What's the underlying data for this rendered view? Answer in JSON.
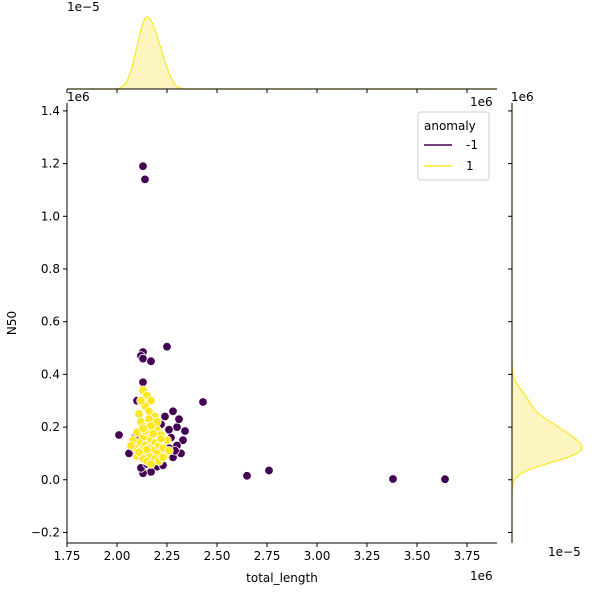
{
  "chart_data": {
    "type": "scatter",
    "title": "",
    "xlabel": "total_length",
    "ylabel": "N50",
    "x_offset_label": "1e6",
    "y_offset_label": "1e6",
    "xlim": [
      1.75,
      3.9
    ],
    "ylim": [
      -0.24,
      1.43
    ],
    "xticks": [
      1.75,
      2.0,
      2.25,
      2.5,
      2.75,
      3.0,
      3.25,
      3.5,
      3.75
    ],
    "xtick_labels": [
      "1.75",
      "2.00",
      "2.25",
      "2.50",
      "2.75",
      "3.00",
      "3.25",
      "3.50",
      "3.75"
    ],
    "yticks": [
      -0.2,
      0.0,
      0.2,
      0.4,
      0.6,
      0.8,
      1.0,
      1.2,
      1.4
    ],
    "ytick_labels": [
      "−0.2",
      "0.0",
      "0.2",
      "0.4",
      "0.6",
      "0.8",
      "1.0",
      "1.2",
      "1.4"
    ],
    "legend": {
      "title": "anomaly",
      "placement": "top-right",
      "entries": [
        {
          "label": "-1",
          "color": "#440154"
        },
        {
          "label": "1",
          "color": "#fde725"
        }
      ]
    },
    "colors": {
      "anomaly_-1": "#440154",
      "anomaly_1": "#fde725",
      "kde_fill": "#fdf5c0"
    },
    "series": [
      {
        "name": "-1",
        "color": "#440154",
        "points": [
          [
            2.13,
            1.19
          ],
          [
            2.14,
            1.14
          ],
          [
            2.25,
            0.505
          ],
          [
            2.13,
            0.485
          ],
          [
            2.12,
            0.47
          ],
          [
            2.13,
            0.46
          ],
          [
            2.17,
            0.45
          ],
          [
            2.13,
            0.37
          ],
          [
            2.43,
            0.295
          ],
          [
            2.01,
            0.17
          ],
          [
            2.65,
            0.015
          ],
          [
            2.76,
            0.035
          ],
          [
            3.38,
            0.003
          ],
          [
            3.64,
            0.002
          ],
          [
            2.1,
            0.3
          ],
          [
            2.28,
            0.26
          ],
          [
            2.3,
            0.2
          ],
          [
            2.33,
            0.15
          ],
          [
            2.34,
            0.185
          ],
          [
            2.32,
            0.1
          ],
          [
            2.28,
            0.085
          ],
          [
            2.26,
            0.12
          ],
          [
            2.24,
            0.24
          ],
          [
            2.22,
            0.07
          ],
          [
            2.2,
            0.05
          ],
          [
            2.17,
            0.03
          ],
          [
            2.13,
            0.025
          ],
          [
            2.12,
            0.045
          ],
          [
            2.08,
            0.12
          ],
          [
            2.06,
            0.1
          ],
          [
            2.3,
            0.13
          ],
          [
            2.27,
            0.16
          ],
          [
            2.31,
            0.23
          ],
          [
            2.26,
            0.19
          ],
          [
            2.29,
            0.11
          ],
          [
            2.23,
            0.055
          ],
          [
            2.18,
            0.09
          ],
          [
            2.15,
            0.06
          ],
          [
            2.09,
            0.16
          ],
          [
            2.22,
            0.21
          ]
        ]
      },
      {
        "name": "1",
        "color": "#fde725",
        "points": [
          [
            2.13,
            0.34
          ],
          [
            2.15,
            0.32
          ],
          [
            2.17,
            0.3
          ],
          [
            2.14,
            0.28
          ],
          [
            2.11,
            0.25
          ],
          [
            2.16,
            0.26
          ],
          [
            2.19,
            0.24
          ],
          [
            2.12,
            0.22
          ],
          [
            2.14,
            0.2
          ],
          [
            2.18,
            0.21
          ],
          [
            2.2,
            0.19
          ],
          [
            2.1,
            0.18
          ],
          [
            2.15,
            0.17
          ],
          [
            2.22,
            0.17
          ],
          [
            2.13,
            0.16
          ],
          [
            2.17,
            0.15
          ],
          [
            2.19,
            0.14
          ],
          [
            2.11,
            0.14
          ],
          [
            2.14,
            0.13
          ],
          [
            2.21,
            0.13
          ],
          [
            2.09,
            0.12
          ],
          [
            2.16,
            0.12
          ],
          [
            2.23,
            0.12
          ],
          [
            2.12,
            0.11
          ],
          [
            2.18,
            0.11
          ],
          [
            2.14,
            0.1
          ],
          [
            2.2,
            0.1
          ],
          [
            2.1,
            0.09
          ],
          [
            2.16,
            0.09
          ],
          [
            2.24,
            0.09
          ],
          [
            2.13,
            0.08
          ],
          [
            2.19,
            0.08
          ],
          [
            2.15,
            0.07
          ],
          [
            2.21,
            0.07
          ],
          [
            2.17,
            0.06
          ],
          [
            2.08,
            0.15
          ],
          [
            2.07,
            0.13
          ],
          [
            2.25,
            0.15
          ],
          [
            2.26,
            0.11
          ],
          [
            2.12,
            0.3
          ],
          [
            2.16,
            0.23
          ],
          [
            2.2,
            0.22
          ],
          [
            2.14,
            0.185
          ],
          [
            2.18,
            0.175
          ],
          [
            2.22,
            0.155
          ],
          [
            2.11,
            0.105
          ],
          [
            2.15,
            0.115
          ],
          [
            2.23,
            0.085
          ],
          [
            2.17,
            0.205
          ],
          [
            2.13,
            0.195
          ]
        ]
      }
    ],
    "marginal_x": {
      "offset_label": "1e−5",
      "curves": [
        {
          "name": "1",
          "color": "#fde725",
          "fill": true
        }
      ]
    },
    "marginal_y": {
      "offset_label": "1e−5",
      "curves": [
        {
          "name": "1",
          "color": "#fde725",
          "fill": true
        }
      ]
    }
  }
}
